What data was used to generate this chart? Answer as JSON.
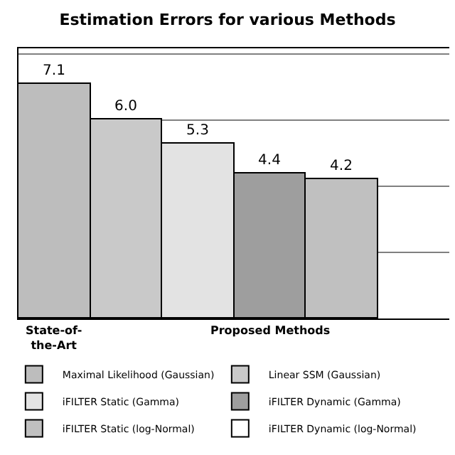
{
  "chart_data": {
    "type": "bar",
    "title": "Estimation Errors for various Methods",
    "categories": [
      null
    ],
    "series": [
      {
        "name": "Maximal Likelihood (Gaussian)",
        "color": "#bdbdbd",
        "values": [
          7.1
        ],
        "value_labels": [
          "7.1"
        ]
      },
      {
        "name": "Linear SSM (Gaussian)",
        "color": "#c9c9c9",
        "values": [
          6.0
        ],
        "value_labels": [
          "6.0"
        ]
      },
      {
        "name": "iFILTER Static (Gamma)",
        "color": "#e3e3e3",
        "values": [
          5.3
        ],
        "value_labels": [
          "5.3"
        ]
      },
      {
        "name": "iFILTER Dynamic (Gamma)",
        "color": "#9e9e9e",
        "values": [
          4.4
        ],
        "value_labels": [
          "4.4"
        ]
      },
      {
        "name": "iFILTER Static (log-Normal)",
        "color": "#c0c0c0",
        "values": [
          4.2
        ],
        "value_labels": [
          "4.2"
        ]
      },
      {
        "name": "iFILTER Dynamic (log-Normal)",
        "color": "#ffffff",
        "values": [
          null
        ],
        "value_labels": [
          null
        ]
      }
    ],
    "grid": "y",
    "tick_labels": false,
    "legend": "bottom",
    "annotations": [
      "State-of-the-Art",
      "Proposed Methods"
    ]
  }
}
